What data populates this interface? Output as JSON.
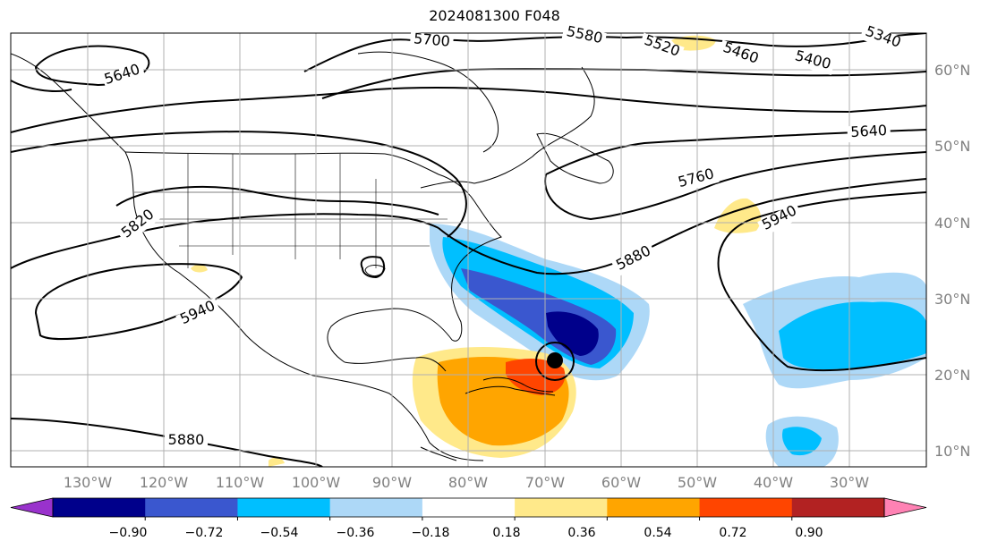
{
  "title": "2024081300 F048",
  "map": {
    "lat_labels": [
      "60°N",
      "50°N",
      "40°N",
      "30°N",
      "20°N",
      "10°N"
    ],
    "lon_labels": [
      "130°W",
      "120°W",
      "110°W",
      "100°W",
      "90°W",
      "80°W",
      "70°W",
      "60°W",
      "50°W",
      "40°W",
      "30°W"
    ],
    "contour_labels": [
      {
        "text": "5640",
        "id": "c5640a"
      },
      {
        "text": "5700",
        "id": "c5700"
      },
      {
        "text": "5580",
        "id": "c5580"
      },
      {
        "text": "5520",
        "id": "c5520"
      },
      {
        "text": "5460",
        "id": "c5460"
      },
      {
        "text": "5400",
        "id": "c5400"
      },
      {
        "text": "5340",
        "id": "c5340"
      },
      {
        "text": "5640",
        "id": "c5640b"
      },
      {
        "text": "5760",
        "id": "c5760"
      },
      {
        "text": "5820",
        "id": "c5820"
      },
      {
        "text": "5880",
        "id": "c5880a"
      },
      {
        "text": "5940",
        "id": "c5940a"
      },
      {
        "text": "5940",
        "id": "c5940b"
      },
      {
        "text": "5880",
        "id": "c5880b"
      }
    ]
  },
  "colorbar": {
    "ticks": [
      "−0.90",
      "−0.72",
      "−0.54",
      "−0.36",
      "−0.18",
      "0.18",
      "0.36",
      "0.54",
      "0.72",
      "0.90"
    ],
    "colors": [
      "#9932CC",
      "#00008B",
      "#3A57CF",
      "#00BFFF",
      "#ADD8F7",
      "#FFFFFF",
      "#FFE98A",
      "#FFA500",
      "#FF4500",
      "#B22222",
      "#FF82B4"
    ]
  }
}
